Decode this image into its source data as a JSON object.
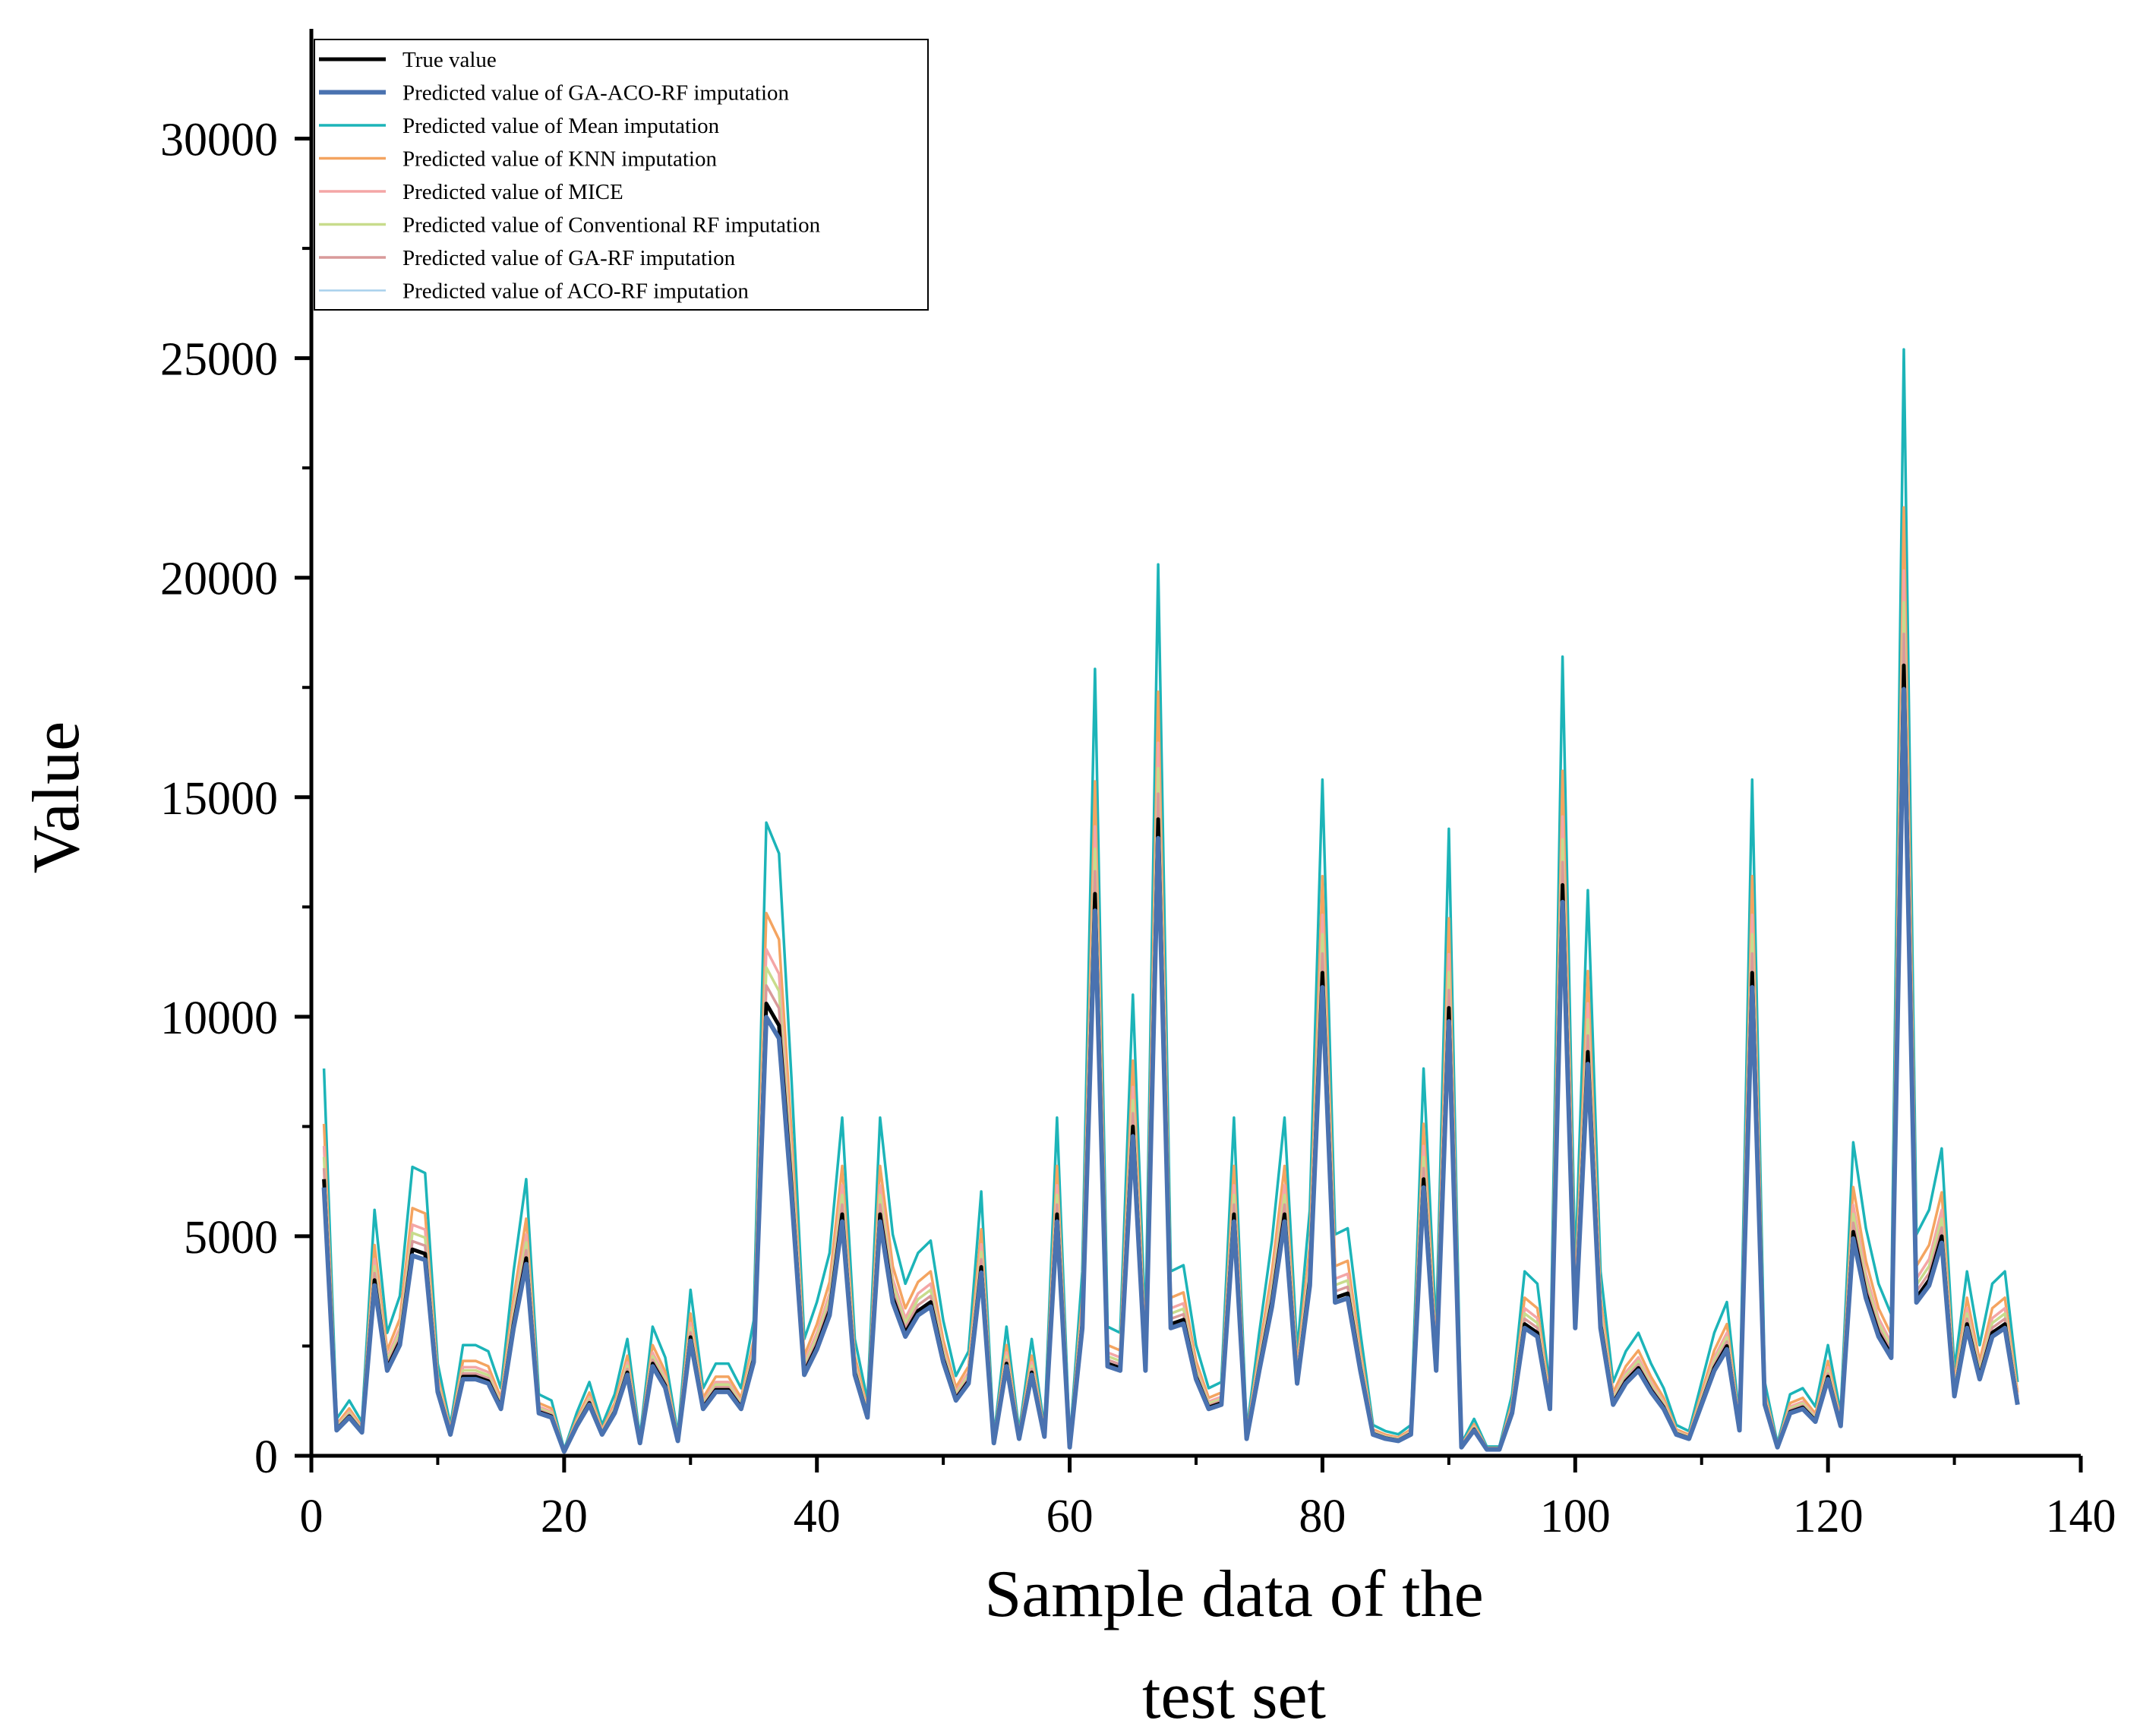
{
  "chart_data": {
    "type": "line",
    "title": "",
    "xlabel_lines": [
      "Sample data of the",
      "test set"
    ],
    "ylabel": "Value",
    "xlim": [
      0,
      140
    ],
    "ylim": [
      0,
      32500
    ],
    "xticks": [
      0,
      20,
      40,
      60,
      80,
      100,
      120,
      140
    ],
    "yticks": [
      0,
      5000,
      10000,
      15000,
      20000,
      25000,
      30000
    ],
    "x": [
      1,
      2,
      3,
      4,
      5,
      6,
      7,
      8,
      9,
      10,
      11,
      12,
      13,
      14,
      15,
      16,
      17,
      18,
      19,
      20,
      21,
      22,
      23,
      24,
      25,
      26,
      27,
      28,
      29,
      30,
      31,
      32,
      33,
      34,
      35,
      36,
      37,
      38,
      39,
      40,
      41,
      42,
      43,
      44,
      45,
      46,
      47,
      48,
      49,
      50,
      51,
      52,
      53,
      54,
      55,
      56,
      57,
      58,
      59,
      60,
      61,
      62,
      63,
      64,
      65,
      66,
      67,
      68,
      69,
      70,
      71,
      72,
      73,
      74,
      75,
      76,
      77,
      78,
      79,
      80,
      81,
      82,
      83,
      84,
      85,
      86,
      87,
      88,
      89,
      90,
      91,
      92,
      93,
      94,
      95,
      96,
      97,
      98,
      99,
      100,
      101,
      102,
      103,
      104,
      105,
      106,
      107,
      108,
      109,
      110,
      111,
      112,
      113,
      114,
      115,
      116,
      117,
      118,
      119,
      120,
      121,
      122,
      123,
      124,
      125,
      126,
      127,
      128,
      129,
      130,
      131,
      132,
      133,
      134,
      135
    ],
    "true_values": [
      6300,
      600,
      900,
      550,
      4000,
      2000,
      2600,
      4700,
      4600,
      1500,
      500,
      1800,
      1800,
      1700,
      1100,
      3000,
      4500,
      1000,
      900,
      100,
      700,
      1200,
      500,
      1000,
      1900,
      300,
      2100,
      1600,
      350,
      2700,
      1100,
      1500,
      1500,
      1100,
      2200,
      10300,
      9800,
      6100,
      1900,
      2500,
      3300,
      5500,
      1900,
      900,
      5500,
      3600,
      2800,
      3300,
      3500,
      2200,
      1300,
      1700,
      4300,
      300,
      2100,
      400,
      1900,
      450,
      5500,
      200,
      3000,
      12800,
      2100,
      2000,
      7500,
      2000,
      14500,
      3000,
      3100,
      1800,
      1100,
      1200,
      5500,
      400,
      2000,
      3500,
      5500,
      1700,
      4000,
      11000,
      3600,
      3700,
      2000,
      500,
      400,
      350,
      500,
      6300,
      2000,
      10200,
      200,
      600,
      150,
      150,
      1000,
      3000,
      2800,
      1100,
      13000,
      3000,
      9200,
      3000,
      1200,
      1700,
      2000,
      1500,
      1100,
      500,
      400,
      1200,
      2000,
      2500,
      600,
      11000,
      1200,
      200,
      1000,
      1100,
      800,
      1800,
      700,
      5100,
      3700,
      2800,
      2300,
      18000,
      3600,
      4000,
      5000,
      1400,
      3000,
      1800,
      2800,
      3000,
      1200
    ],
    "series": [
      {
        "name": "True value",
        "legend": "True value",
        "color": "#000000",
        "width": 5,
        "opacity": 1,
        "mult": 1.0
      },
      {
        "name": "Predicted value of GA-ACO-RF imputation",
        "legend": "Predicted value of GA-ACO-RF imputation",
        "color": "#4a72b0",
        "width": 6,
        "opacity": 1,
        "mult": 0.97
      },
      {
        "name": "Predicted value of Mean imputation",
        "legend": "Predicted value of Mean imputation",
        "color": "#1cb4b8",
        "width": 3.5,
        "opacity": 1,
        "mult": 1.4
      },
      {
        "name": "Predicted value of KNN imputation",
        "legend": "Predicted value of KNN imputation",
        "color": "#f4a460",
        "width": 3.5,
        "opacity": 1,
        "mult": 1.2
      },
      {
        "name": "Predicted value of MICE",
        "legend": "Predicted value of MICE",
        "color": "#f4a6a6",
        "width": 3.5,
        "opacity": 1,
        "mult": 1.12
      },
      {
        "name": "Predicted value of Conventional RF imputation",
        "legend": "Predicted value of Conventional RF imputation",
        "color": "#c8dc8c",
        "width": 3.5,
        "opacity": 1,
        "mult": 1.08
      },
      {
        "name": "Predicted value of GA-RF imputation",
        "legend": "Predicted value of GA-RF imputation",
        "color": "#d99a9a",
        "width": 3.5,
        "opacity": 1,
        "mult": 1.04
      },
      {
        "name": "Predicted value of ACO-RF imputation",
        "legend": "Predicted value of ACO-RF imputation",
        "color": "#a8d0ec",
        "width": 2.5,
        "opacity": 1,
        "mult": 1.0
      }
    ],
    "legend_position": "top-left"
  }
}
